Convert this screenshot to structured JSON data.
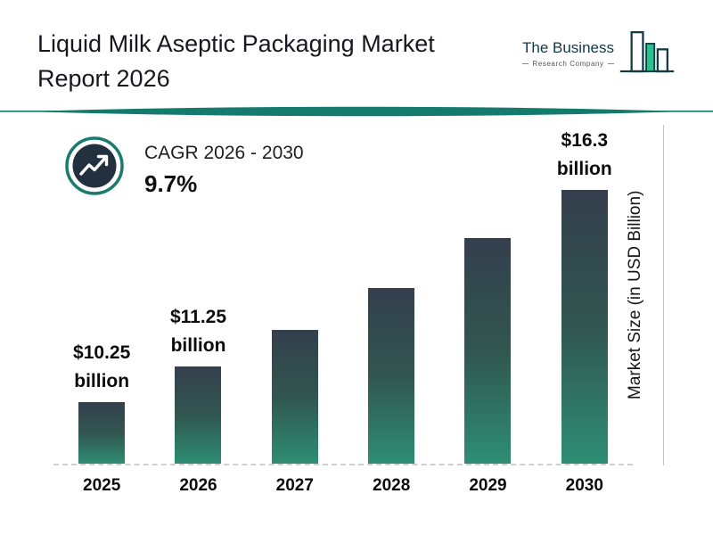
{
  "header": {
    "title_lines": [
      "Liquid Milk Aseptic Packaging Market",
      "Report 2026"
    ],
    "logo": {
      "name_line1": "The Business",
      "name_line2": "Research Company"
    }
  },
  "cagr": {
    "label": "CAGR 2026 - 2030",
    "value": "9.7%"
  },
  "chart_data": {
    "type": "bar",
    "title": "Liquid Milk Aseptic Packaging Market Report 2026",
    "categories": [
      "2025",
      "2026",
      "2027",
      "2028",
      "2029",
      "2030"
    ],
    "values": [
      10.25,
      11.25,
      12.3,
      13.5,
      14.9,
      16.3
    ],
    "value_labels": [
      {
        "amount": "$10.25",
        "unit": "billion"
      },
      {
        "amount": "$11.25",
        "unit": "billion"
      },
      null,
      null,
      null,
      {
        "amount": "$16.3",
        "unit": "billion"
      }
    ],
    "xlabel": "",
    "ylabel": "Market Size (in USD Billion)",
    "ylim": [
      0,
      18
    ],
    "grid": false,
    "legend": false
  },
  "colors": {
    "accent_teal": "#157a6e",
    "bar_gradient_top": "#343f4e",
    "bar_gradient_bottom": "#2e8e74",
    "logo_green": "#2fbe8e",
    "dark_navy": "#22303f"
  }
}
